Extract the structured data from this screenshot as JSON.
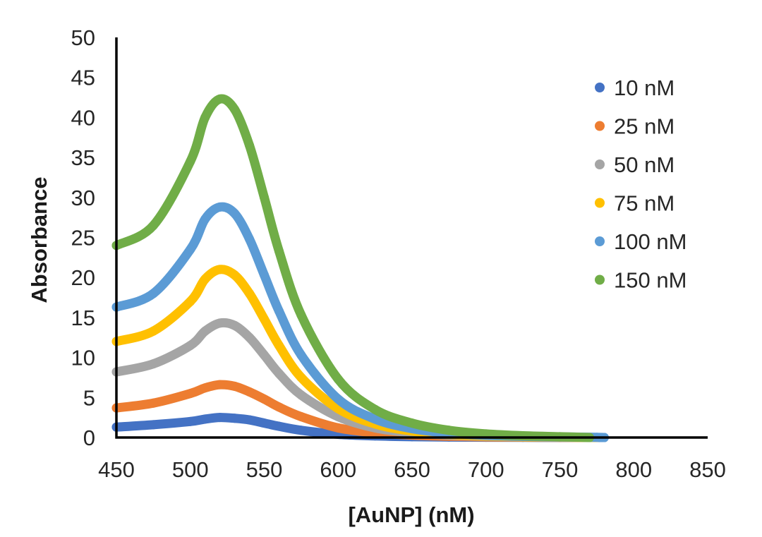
{
  "chart_data": {
    "type": "scatter",
    "title": "",
    "xlabel": "[AuNP] (nM)",
    "ylabel": "Absorbance",
    "xlim": [
      450,
      850
    ],
    "ylim": [
      0,
      50
    ],
    "xticks": [
      "450",
      "500",
      "550",
      "600",
      "650",
      "700",
      "750",
      "800",
      "850"
    ],
    "yticks": [
      "0",
      "5",
      "10",
      "15",
      "20",
      "25",
      "30",
      "35",
      "40",
      "45",
      "50"
    ],
    "grid": false,
    "legend": "right",
    "series": [
      {
        "name": "10 nM",
        "color": "#4472C4",
        "x": [
          450,
          475,
          500,
          510,
          520,
          530,
          540,
          550,
          560,
          575,
          600,
          625,
          650,
          675,
          700,
          725,
          750,
          775,
          780
        ],
        "y": [
          1.3,
          1.6,
          2.0,
          2.3,
          2.5,
          2.4,
          2.2,
          1.8,
          1.4,
          0.9,
          0.4,
          0.2,
          0.1,
          0.05,
          0.03,
          0.02,
          0.01,
          0.0,
          0.0
        ]
      },
      {
        "name": "25 nM",
        "color": "#ED7D31",
        "x": [
          450,
          475,
          500,
          510,
          520,
          530,
          540,
          550,
          560,
          575,
          600,
          625,
          650,
          675,
          700,
          725,
          750,
          765
        ],
        "y": [
          3.7,
          4.3,
          5.5,
          6.2,
          6.6,
          6.4,
          5.7,
          4.8,
          3.8,
          2.6,
          1.2,
          0.6,
          0.3,
          0.15,
          0.08,
          0.04,
          0.02,
          0.0
        ]
      },
      {
        "name": "50 nM",
        "color": "#A5A5A5",
        "x": [
          450,
          475,
          500,
          510,
          520,
          530,
          540,
          550,
          560,
          575,
          600,
          625,
          650,
          675,
          700,
          725,
          750,
          775
        ],
        "y": [
          8.2,
          9.2,
          11.5,
          13.3,
          14.3,
          14.0,
          12.5,
          10.3,
          8.0,
          5.3,
          2.6,
          1.2,
          0.6,
          0.3,
          0.15,
          0.08,
          0.04,
          0.0
        ]
      },
      {
        "name": "75 nM",
        "color": "#FFC000",
        "x": [
          450,
          475,
          500,
          510,
          520,
          530,
          540,
          550,
          560,
          575,
          600,
          625,
          650,
          675,
          700,
          725,
          750,
          775
        ],
        "y": [
          12.0,
          13.3,
          17.0,
          19.8,
          21.0,
          20.3,
          18.0,
          14.8,
          11.5,
          7.5,
          3.6,
          1.7,
          0.8,
          0.4,
          0.2,
          0.1,
          0.05,
          0.0
        ]
      },
      {
        "name": "100 nM",
        "color": "#5B9BD5",
        "x": [
          450,
          475,
          500,
          510,
          520,
          530,
          540,
          550,
          560,
          575,
          600,
          625,
          650,
          675,
          700,
          725,
          750,
          775,
          780
        ],
        "y": [
          16.3,
          18.0,
          23.5,
          27.3,
          28.8,
          28.0,
          24.8,
          20.3,
          15.8,
          10.3,
          4.8,
          2.3,
          1.1,
          0.55,
          0.28,
          0.14,
          0.07,
          0.02,
          0.0
        ]
      },
      {
        "name": "150 nM",
        "color": "#70AD47",
        "x": [
          450,
          475,
          500,
          510,
          520,
          530,
          540,
          550,
          560,
          575,
          600,
          625,
          650,
          675,
          700,
          725,
          750,
          770
        ],
        "y": [
          24.0,
          26.5,
          34.5,
          40.0,
          42.3,
          41.0,
          36.5,
          30.0,
          23.3,
          15.3,
          7.3,
          3.5,
          1.8,
          0.9,
          0.45,
          0.22,
          0.1,
          0.0
        ]
      }
    ]
  }
}
